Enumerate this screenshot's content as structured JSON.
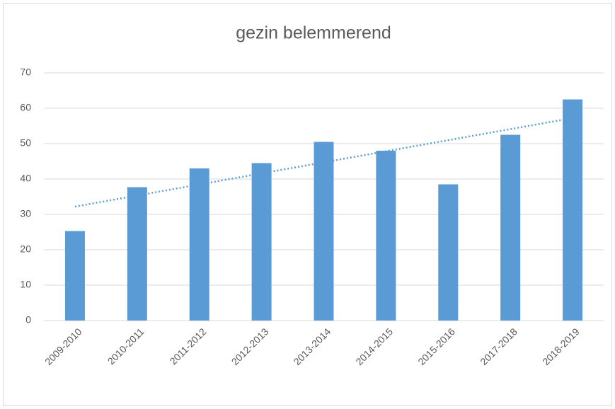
{
  "chart_data": {
    "type": "bar",
    "title": "gezin belemmerend",
    "categories": [
      "2009-2010",
      "2010-2011",
      "2011-2012",
      "2012-2013",
      "2013-2014",
      "2014-2015",
      "2015-2016",
      "2017-2018",
      "2018-2019"
    ],
    "values": [
      25.3,
      37.7,
      43,
      44.5,
      50.5,
      48,
      38.5,
      52.5,
      62.5
    ],
    "color": "#5b9bd5",
    "ylim": [
      0,
      70
    ],
    "yticks": [
      0,
      10,
      20,
      30,
      40,
      50,
      60,
      70
    ],
    "grid": true,
    "trendline": "linear",
    "trendline_color": "#5b9bd5"
  }
}
